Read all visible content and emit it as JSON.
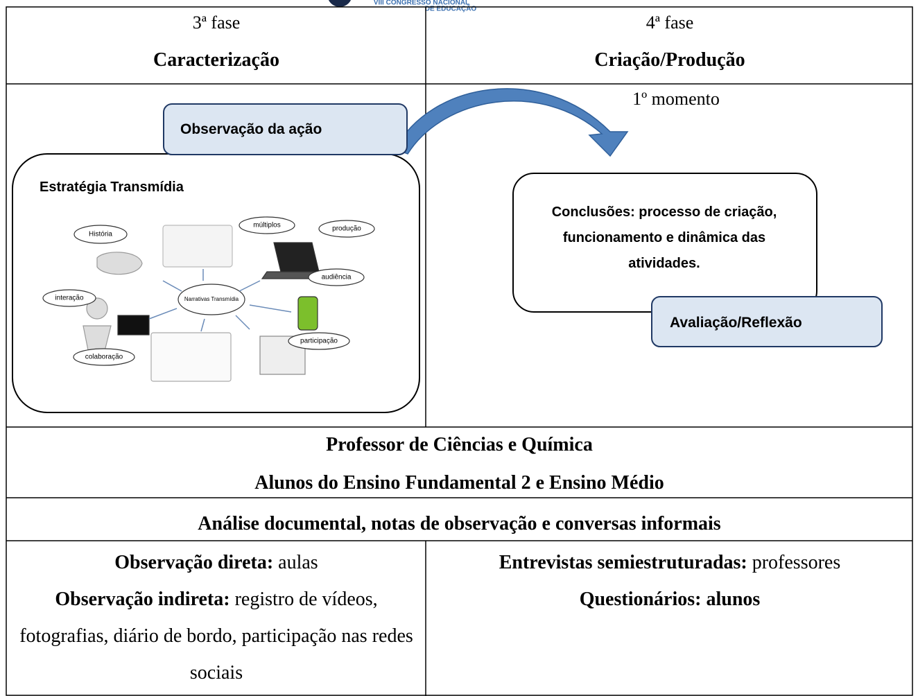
{
  "header": {
    "logo_line1": "VIII CONGRESSO NACIONAL",
    "logo_line2": "DE EDUCAÇÃO"
  },
  "table": {
    "row1": {
      "left": {
        "phase": "3ª fase",
        "title": "Caracterização"
      },
      "right": {
        "phase": "4ª fase",
        "title": "Criação/Produção"
      }
    },
    "row2": {
      "left": {
        "observation_box": "Observação da ação",
        "strategy_title": "Estratégia Transmídia",
        "illustration_labels": [
          "História",
          "múltiplos",
          "produção",
          "audiência",
          "interação",
          "Narrativas Transmídia",
          "participação",
          "colaboração"
        ]
      },
      "right": {
        "moment": "1º momento",
        "conclusions": "Conclusões: processo de criação, funcionamento e dinâmica das atividades.",
        "evaluation_box": "Avaliação/Reflexão"
      }
    },
    "row3": {
      "line1": "Professor de Ciências e Química",
      "line2": "Alunos do Ensino Fundamental 2 e Ensino Médio"
    },
    "row4": {
      "text": "Análise documental, notas de observação e conversas informais"
    },
    "row5": {
      "left": [
        {
          "label": "Observação direta:",
          "text": " aulas"
        },
        {
          "label": "Observação indireta:",
          "text": " registro de vídeos, fotografias, diário de bordo, participação nas redes sociais"
        }
      ],
      "right": [
        {
          "label": "Entrevistas semiestruturadas:",
          "text": " professores"
        },
        {
          "label": "Questionários: alunos"
        }
      ]
    }
  }
}
